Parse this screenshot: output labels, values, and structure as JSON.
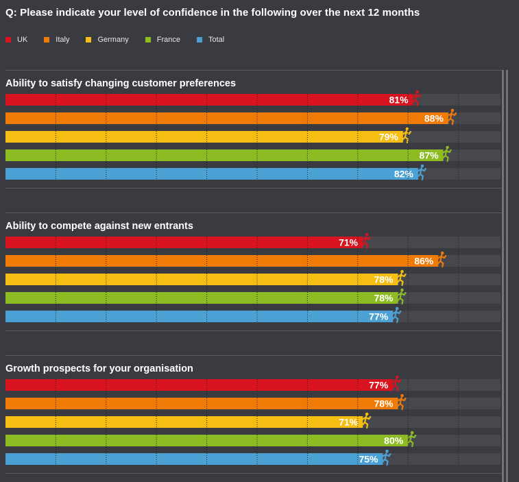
{
  "title": "Q: Please indicate your level of confidence in the following over the next 12 months",
  "legend": [
    {
      "label": "UK",
      "color": "#d7141f"
    },
    {
      "label": "Italy",
      "color": "#ef7a06"
    },
    {
      "label": "Germany",
      "color": "#f6bd13"
    },
    {
      "label": "France",
      "color": "#8dbb24"
    },
    {
      "label": "Total",
      "color": "#4ba1d3"
    }
  ],
  "colors": {
    "background": "#3a3b40",
    "track": "#47484d",
    "divider": "#5a5b60",
    "grid": "#1e1f22",
    "frame": "#8b8c90"
  },
  "icons": [
    "runner-icon"
  ],
  "chart_data": [
    {
      "type": "bar",
      "title": "Ability to satisfy changing customer preferences",
      "categories": [
        "UK",
        "Italy",
        "Germany",
        "France",
        "Total"
      ],
      "values": [
        81,
        88,
        79,
        87,
        82
      ],
      "labels": [
        "81%",
        "88%",
        "79%",
        "87%",
        "82%"
      ],
      "ylim": [
        0,
        100
      ],
      "orientation": "horizontal",
      "grid": true
    },
    {
      "type": "bar",
      "title": "Ability to compete against new entrants",
      "categories": [
        "UK",
        "Italy",
        "Germany",
        "France",
        "Total"
      ],
      "values": [
        71,
        86,
        78,
        78,
        77
      ],
      "labels": [
        "71%",
        "86%",
        "78%",
        "78%",
        "77%"
      ],
      "ylim": [
        0,
        100
      ],
      "orientation": "horizontal",
      "grid": true
    },
    {
      "type": "bar",
      "title": "Growth prospects for your organisation",
      "categories": [
        "UK",
        "Italy",
        "Germany",
        "France",
        "Total"
      ],
      "values": [
        77,
        78,
        71,
        80,
        75
      ],
      "labels": [
        "77%",
        "78%",
        "71%",
        "80%",
        "75%"
      ],
      "ylim": [
        0,
        100
      ],
      "orientation": "horizontal",
      "grid": true
    }
  ]
}
